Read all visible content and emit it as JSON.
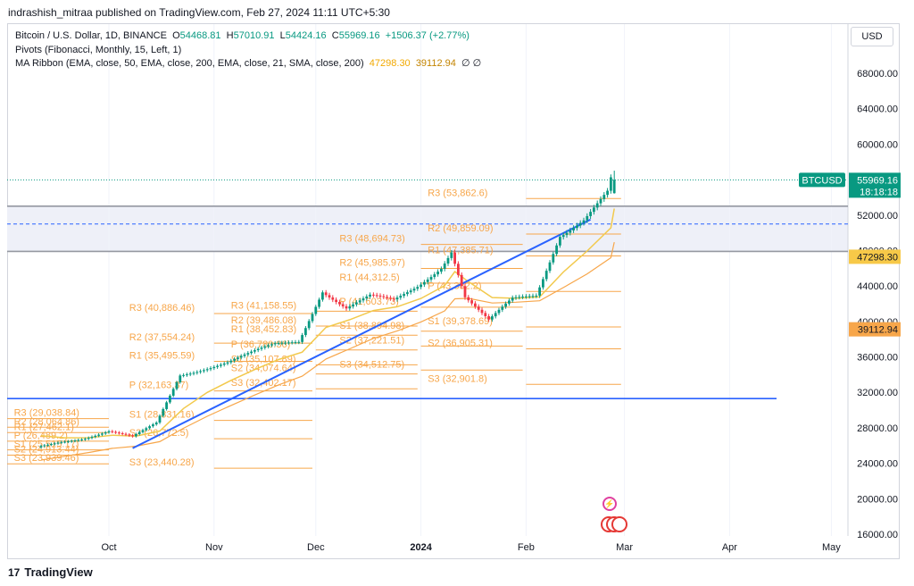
{
  "publisher_line": "indrashish_mitraa published on TradingView.com, Feb 27, 2024 11:11 UTC+5:30",
  "legend": {
    "symbol": "Bitcoin / U.S. Dollar, 1D, BINANCE",
    "open_label": "O",
    "open": "54468.81",
    "high_label": "H",
    "high": "57010.91",
    "low_label": "L",
    "low": "54424.16",
    "close_label": "C",
    "close": "55969.16",
    "change": "+1506.37 (+2.77%)",
    "pivots": "Pivots (Fibonacci, Monthly, 15, Left, 1)",
    "ma_ribbon": "MA Ribbon (EMA, close, 50, EMA, close, 200, EMA, close, 21, SMA, close, 200)",
    "ma_val1": "47298.30",
    "ma_val2": "39112.94",
    "na_glyphs": "∅ ∅"
  },
  "currency_button": "USD",
  "price_tag": {
    "symbol": "BTCUSD",
    "price": "55969.16",
    "countdown": "18:18:18"
  },
  "ma_tags": [
    "47298.30",
    "39112.94"
  ],
  "footer": {
    "brand": "TradingView",
    "mark": "17"
  },
  "colors": {
    "up": "#089981",
    "down": "#f23645",
    "pivot": "#f7a64a",
    "trend": "#2962ff",
    "ma_fast": "#f2c94c",
    "ma_slow": "#f7a64a",
    "zone": "#9598a1"
  },
  "chart_data": {
    "type": "candlestick",
    "title": "Bitcoin / U.S. Dollar, 1D, BINANCE",
    "ylim": [
      16000,
      70000
    ],
    "y_ticks": [
      "68000.00",
      "64000.00",
      "60000.00",
      "52000.00",
      "48000.00",
      "44000.00",
      "40000.00",
      "36000.00",
      "32000.00",
      "28000.00",
      "24000.00",
      "20000.00",
      "16000.00"
    ],
    "x_ticks": [
      "Oct",
      "Nov",
      "Dec",
      "2024",
      "Feb",
      "Mar",
      "Apr",
      "May"
    ],
    "last_price": 55969.16,
    "close_path": [
      {
        "date": "2023-09-11",
        "close": 25800
      },
      {
        "date": "2023-09-18",
        "close": 26500
      },
      {
        "date": "2023-09-25",
        "close": 26900
      },
      {
        "date": "2023-10-02",
        "close": 27600
      },
      {
        "date": "2023-10-09",
        "close": 26900
      },
      {
        "date": "2023-10-16",
        "close": 28500
      },
      {
        "date": "2023-10-23",
        "close": 34000
      },
      {
        "date": "2023-10-30",
        "close": 34700
      },
      {
        "date": "2023-11-06",
        "close": 35400
      },
      {
        "date": "2023-11-13",
        "close": 36400
      },
      {
        "date": "2023-11-20",
        "close": 37400
      },
      {
        "date": "2023-11-27",
        "close": 37800
      },
      {
        "date": "2023-12-04",
        "close": 43500
      },
      {
        "date": "2023-12-11",
        "close": 41500
      },
      {
        "date": "2023-12-18",
        "close": 42800
      },
      {
        "date": "2023-12-25",
        "close": 42300
      },
      {
        "date": "2024-01-01",
        "close": 44000
      },
      {
        "date": "2024-01-08",
        "close": 46200
      },
      {
        "date": "2024-01-11",
        "close": 48000
      },
      {
        "date": "2024-01-15",
        "close": 42800
      },
      {
        "date": "2024-01-22",
        "close": 40000
      },
      {
        "date": "2024-01-29",
        "close": 42500
      },
      {
        "date": "2024-02-05",
        "close": 43000
      },
      {
        "date": "2024-02-12",
        "close": 49800
      },
      {
        "date": "2024-02-19",
        "close": 51500
      },
      {
        "date": "2024-02-26",
        "close": 54500
      },
      {
        "date": "2024-02-27",
        "close": 55969.16
      }
    ],
    "horizontal_lines": [
      {
        "price": 53000,
        "style": "zone-top"
      },
      {
        "price": 47900,
        "style": "zone-bottom"
      },
      {
        "price": 51000,
        "style": "dashed"
      },
      {
        "price": 31300,
        "style": "support"
      }
    ],
    "pivot_labels": [
      {
        "text": "R3 (53,862.6)",
        "price": 53862.6
      },
      {
        "text": "R2 (49,859.09)",
        "price": 49859.09
      },
      {
        "text": "R1 (47,385.71)",
        "price": 47385.71
      },
      {
        "text": "P (43,382.2)",
        "price": 43382.2
      },
      {
        "text": "S1 (39,378.69)",
        "price": 39378.69
      },
      {
        "text": "S2 (36,905.31)",
        "price": 36905.31
      },
      {
        "text": "S3 (32,901.8)",
        "price": 32901.8
      },
      {
        "text": "R3 (48,694.73)",
        "price": 48694.73
      },
      {
        "text": "R2 (45,985.97)",
        "price": 45985.97
      },
      {
        "text": "R1 (44,312.5)",
        "price": 44312.5
      },
      {
        "text": "P (41,603.73)",
        "price": 41603.73
      },
      {
        "text": "S1 (38,894.98)",
        "price": 38894.98
      },
      {
        "text": "S2 (37,221.51)",
        "price": 37221.51
      },
      {
        "text": "S3 (34,512.75)",
        "price": 34512.75
      },
      {
        "text": "R3 (41,158.55)",
        "price": 41158.55
      },
      {
        "text": "R2 (39,486.08)",
        "price": 39486.08
      },
      {
        "text": "R1 (38,452.83)",
        "price": 38452.83
      },
      {
        "text": "P (36,780.36)",
        "price": 36780.36
      },
      {
        "text": "S1 (35,107.89)",
        "price": 35107.89
      },
      {
        "text": "S2 (34,074.64)",
        "price": 34074.64
      },
      {
        "text": "S3 (32,402.17)",
        "price": 32402.17
      },
      {
        "text": "R3 (40,886.46)",
        "price": 40886.46
      },
      {
        "text": "R2 (37,554.24)",
        "price": 37554.24
      },
      {
        "text": "R1 (35,495.59)",
        "price": 35495.59
      },
      {
        "text": "P (32,163.37)",
        "price": 32163.37
      },
      {
        "text": "S1 (28,831.16)",
        "price": 28831.16
      },
      {
        "text": "S2 (26,772.5)",
        "price": 26772.5
      },
      {
        "text": "S3 (23,440.28)",
        "price": 23440.28
      },
      {
        "text": "R3 (29,038.84)",
        "price": 29038.84
      },
      {
        "text": "R2 (28,064.86)",
        "price": 28064.86
      },
      {
        "text": "R1 (27,462.1)",
        "price": 27462.1
      },
      {
        "text": "P (26,489.2)",
        "price": 26489.2
      },
      {
        "text": "S1 (25,515.17)",
        "price": 25515.17
      },
      {
        "text": "S2 (24,913.44)",
        "price": 24913.44
      },
      {
        "text": "S3 (23,939.46)",
        "price": 23939.46
      }
    ]
  }
}
